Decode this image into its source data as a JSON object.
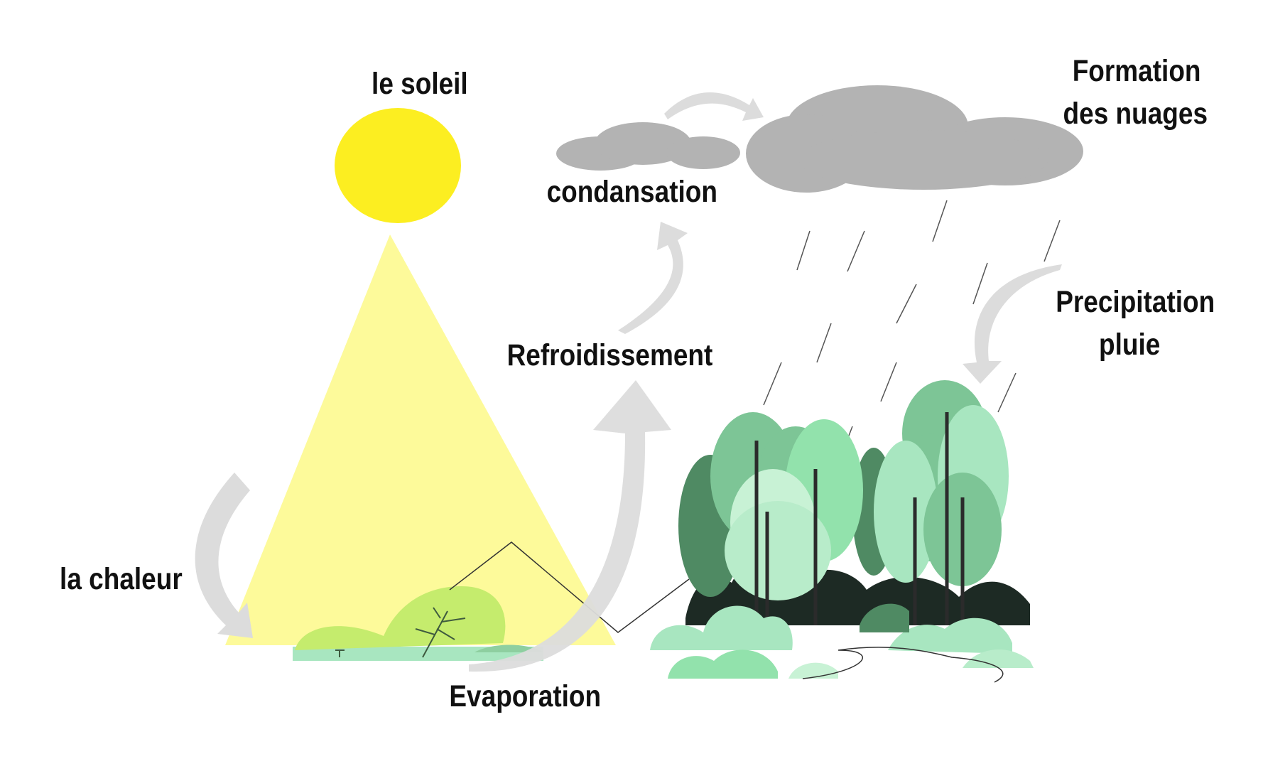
{
  "labels": {
    "sun": "le soleil",
    "heat": "la chaleur",
    "evaporation": "Evaporation",
    "cooling": "Refroidissement",
    "condensation": "condansation",
    "cloud_formation_line1": "Formation",
    "cloud_formation_line2": "des nuages",
    "precipitation_line1": "Precipitation",
    "precipitation_line2": "pluie"
  },
  "colors": {
    "sun": "#fcee21",
    "sun_rays": "#fdfa9a",
    "cloud": "#b3b3b3",
    "arrows": "#dcdcdc",
    "foliage_light": "#a8e6c0",
    "foliage_mid": "#7dc596",
    "foliage_dark": "#4f8a63",
    "bush": "#c5ec6d",
    "rain": "#555555"
  },
  "icons": [
    "sun",
    "cloud",
    "rain",
    "forest",
    "bush",
    "arrow"
  ]
}
